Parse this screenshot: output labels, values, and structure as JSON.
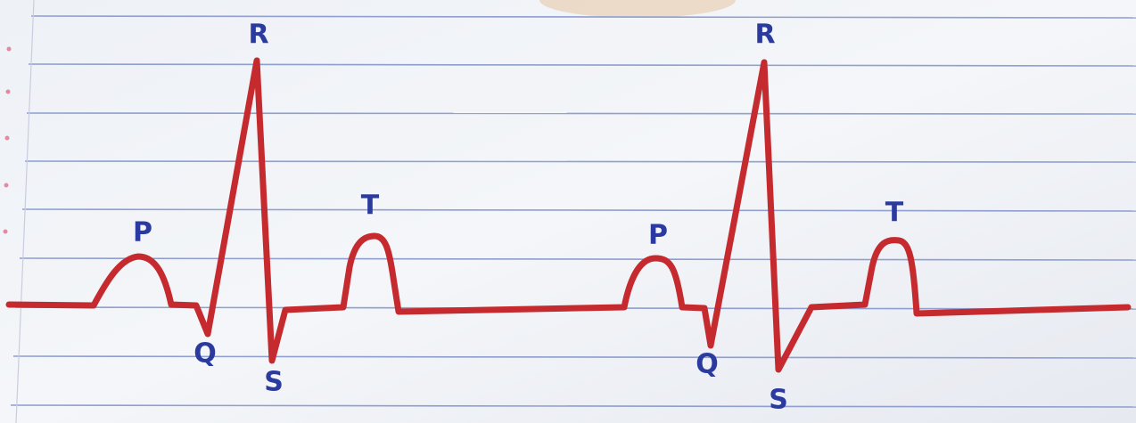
{
  "labels": [
    "P",
    "Q",
    "R",
    "S",
    "T",
    "P",
    "Q",
    "R",
    "S",
    "T"
  ]
}
